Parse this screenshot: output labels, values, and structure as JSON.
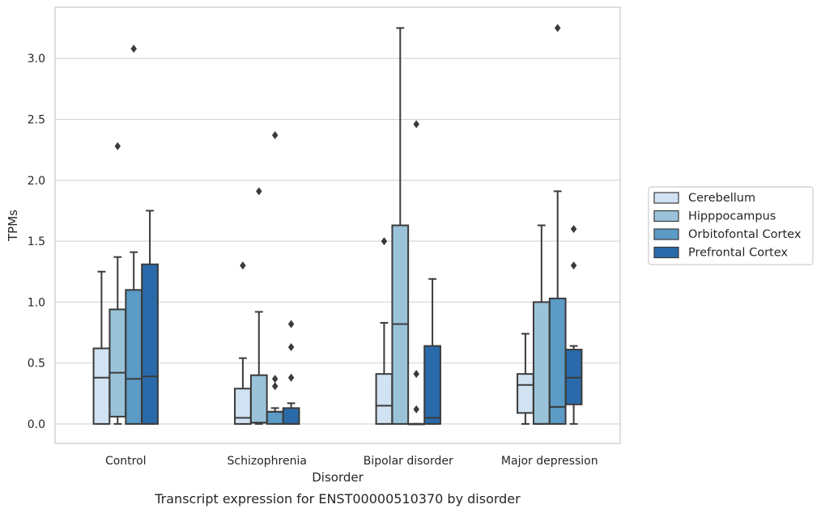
{
  "chart_data": {
    "type": "box",
    "title": "",
    "caption": "Transcript expression for ENST00000510370 by disorder",
    "xlabel": "Disorder",
    "ylabel": "TPMs",
    "ylim": [
      -0.16,
      3.42
    ],
    "yticks": [
      0.0,
      0.5,
      1.0,
      1.5,
      2.0,
      2.5,
      3.0
    ],
    "ytick_labels": [
      "0.0",
      "0.5",
      "1.0",
      "1.5",
      "2.0",
      "2.5",
      "3.0"
    ],
    "grid": "horizontal",
    "legend_position": "right",
    "categories": [
      "Control",
      "Schizophrenia",
      "Bipolar disorder",
      "Major depression"
    ],
    "series": [
      {
        "name": "Cerebellum",
        "color": "#d1e2f2",
        "boxes": [
          {
            "whislo": 0.0,
            "q1": 0.0,
            "med": 0.38,
            "q3": 0.62,
            "whishi": 1.25,
            "fliers": []
          },
          {
            "whislo": 0.0,
            "q1": 0.0,
            "med": 0.05,
            "q3": 0.29,
            "whishi": 0.54,
            "fliers": [
              1.3
            ]
          },
          {
            "whislo": 0.0,
            "q1": 0.0,
            "med": 0.15,
            "q3": 0.41,
            "whishi": 0.83,
            "fliers": [
              1.5
            ]
          },
          {
            "whislo": 0.0,
            "q1": 0.09,
            "med": 0.32,
            "q3": 0.41,
            "whishi": 0.74,
            "fliers": []
          }
        ]
      },
      {
        "name": "Hipppocampus",
        "color": "#9ac3da",
        "boxes": [
          {
            "whislo": 0.0,
            "q1": 0.06,
            "med": 0.42,
            "q3": 0.94,
            "whishi": 1.37,
            "fliers": [
              2.28
            ]
          },
          {
            "whislo": 0.0,
            "q1": 0.01,
            "med": 0.01,
            "q3": 0.4,
            "whishi": 0.92,
            "fliers": [
              1.91
            ]
          },
          {
            "whislo": 0.0,
            "q1": 0.0,
            "med": 0.82,
            "q3": 1.63,
            "whishi": 3.25,
            "fliers": []
          },
          {
            "whislo": 0.0,
            "q1": 0.0,
            "med": 0.0,
            "q3": 1.0,
            "whishi": 1.63,
            "fliers": []
          }
        ]
      },
      {
        "name": "Orbitofontal Cortex",
        "color": "#5b9bc5",
        "boxes": [
          {
            "whislo": 0.0,
            "q1": 0.0,
            "med": 0.37,
            "q3": 1.1,
            "whishi": 1.41,
            "fliers": [
              3.08
            ]
          },
          {
            "whislo": 0.0,
            "q1": 0.0,
            "med": 0.1,
            "q3": 0.1,
            "whishi": 0.13,
            "fliers": [
              0.31,
              0.37,
              2.37
            ]
          },
          {
            "whislo": 0.0,
            "q1": 0.0,
            "med": 0.0,
            "q3": 0.0,
            "whishi": 0.0,
            "fliers": [
              0.12,
              0.41,
              2.46
            ]
          },
          {
            "whislo": 0.0,
            "q1": 0.0,
            "med": 0.14,
            "q3": 1.03,
            "whishi": 1.91,
            "fliers": [
              3.25
            ]
          }
        ]
      },
      {
        "name": "Prefrontal Cortex",
        "color": "#2a6aaa",
        "boxes": [
          {
            "whislo": 0.0,
            "q1": 0.0,
            "med": 0.39,
            "q3": 1.31,
            "whishi": 1.75,
            "fliers": []
          },
          {
            "whislo": 0.0,
            "q1": 0.0,
            "med": 0.0,
            "q3": 0.13,
            "whishi": 0.17,
            "fliers": [
              0.38,
              0.63,
              0.82
            ]
          },
          {
            "whislo": 0.0,
            "q1": 0.0,
            "med": 0.05,
            "q3": 0.64,
            "whishi": 1.19,
            "fliers": []
          },
          {
            "whislo": 0.0,
            "q1": 0.16,
            "med": 0.38,
            "q3": 0.61,
            "whishi": 0.64,
            "fliers": [
              1.3,
              1.6
            ]
          }
        ]
      }
    ]
  }
}
